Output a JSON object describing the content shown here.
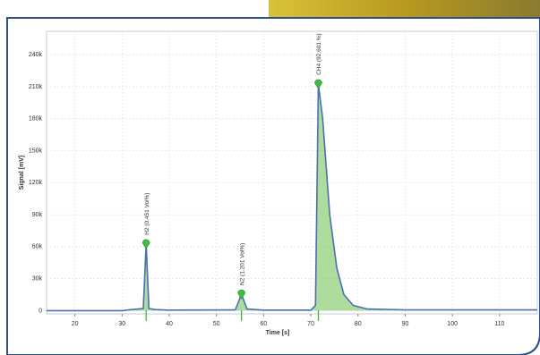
{
  "chart_data": {
    "type": "line",
    "x_label": "Time [s]",
    "y_label": "Signal [mV]",
    "xlim": [
      14,
      118
    ],
    "xticks": [
      20,
      30,
      40,
      50,
      60,
      70,
      80,
      90,
      100,
      110
    ],
    "ylim": [
      -3000,
      262000
    ],
    "yticks": [
      {
        "value": 0,
        "label": "0"
      },
      {
        "value": 30000,
        "label": "30k"
      },
      {
        "value": 60000,
        "label": "60k"
      },
      {
        "value": 90000,
        "label": "90k"
      },
      {
        "value": 120000,
        "label": "120k"
      },
      {
        "value": 150000,
        "label": "150k"
      },
      {
        "value": 180000,
        "label": "180k"
      },
      {
        "value": 210000,
        "label": "210k"
      },
      {
        "value": 240000,
        "label": "240k"
      }
    ],
    "grid": true,
    "series": [
      {
        "color": "#4a6fb5",
        "fill": "#6cc04a",
        "x": [
          14,
          30,
          32,
          34.5,
          35.1,
          35.7,
          37,
          40,
          54,
          55.3,
          56.5,
          60,
          70,
          71,
          71.6,
          72.5,
          74,
          75.5,
          77,
          79,
          82,
          90,
          118
        ],
        "values": [
          0,
          0,
          1000,
          2000,
          62600,
          2000,
          1000,
          500,
          800,
          15400,
          1500,
          500,
          500,
          5000,
          212600,
          180000,
          90000,
          40000,
          15000,
          5000,
          1500,
          800,
          800
        ]
      }
    ],
    "peaks": [
      {
        "label": "H2 (0.451 Vol%)",
        "x": 35.1,
        "height": 62600
      },
      {
        "label": "N2 (1.201 Vol%)",
        "x": 55.3,
        "height": 15400
      },
      {
        "label": "CH4 (92.601 %)",
        "x": 71.6,
        "height": 212600
      }
    ]
  }
}
